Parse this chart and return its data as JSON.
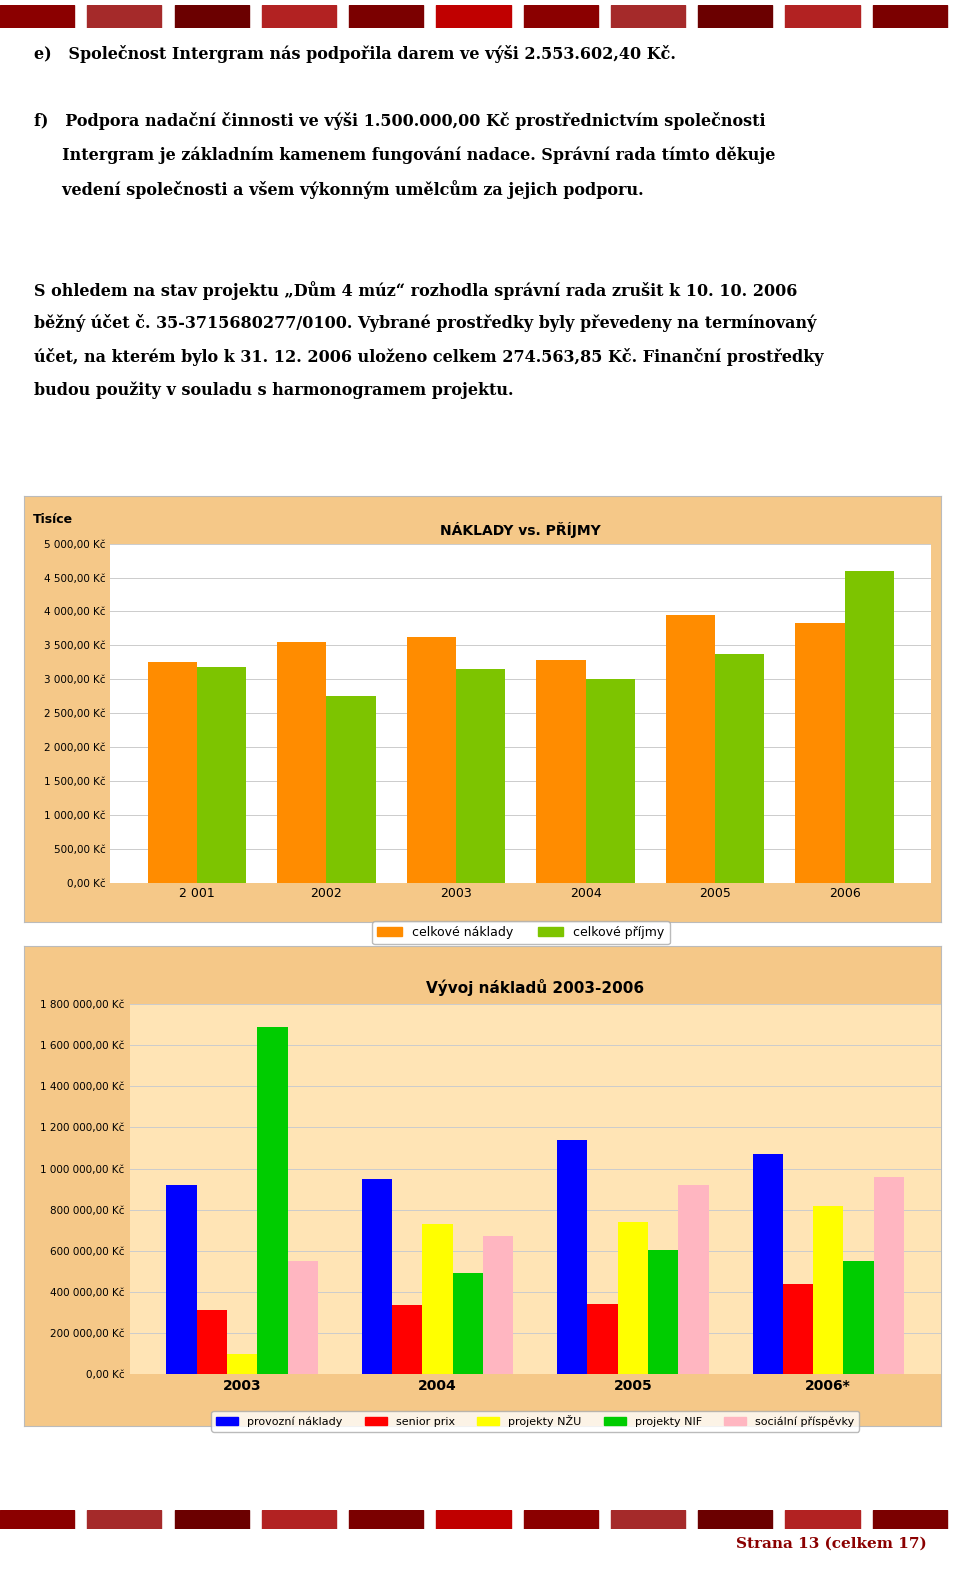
{
  "page_bg": "#ffffff",
  "stripe_colors": [
    "#8B0000",
    "#A52A2A",
    "#6B0000",
    "#B22222",
    "#7B0000",
    "#C00000",
    "#8B0000",
    "#A52A2A",
    "#6B0000",
    "#B22222",
    "#7B0000"
  ],
  "chart1": {
    "title": "NÁKLADY vs. PŘÍJMY",
    "ylabel": "Tisíce",
    "years": [
      "2 001",
      "2002",
      "2003",
      "2004",
      "2005",
      "2006"
    ],
    "naklady": [
      3250,
      3550,
      3620,
      3280,
      3950,
      3830
    ],
    "prijmy": [
      3180,
      2750,
      3150,
      3000,
      3380,
      4600
    ],
    "naklady_color": "#FF8C00",
    "prijmy_color": "#7DC400",
    "bg_color": "#F5C888",
    "plot_bg": "#ffffff",
    "legend_naklady": "celkové náklady",
    "legend_prijmy": "celkové příjmy",
    "ylim": [
      0,
      5000
    ],
    "yticks": [
      0,
      500,
      1000,
      1500,
      2000,
      2500,
      3000,
      3500,
      4000,
      4500,
      5000
    ]
  },
  "chart2": {
    "title": "Vývoj nákladů 2003-2006",
    "years": [
      "2003",
      "2004",
      "2005",
      "2006*"
    ],
    "provozni_naklady": [
      920000,
      950000,
      1140000,
      1070000
    ],
    "senior_prix": [
      310000,
      335000,
      340000,
      440000
    ],
    "projekty_nzu": [
      100000,
      730000,
      740000,
      820000
    ],
    "projekty_nif": [
      1690000,
      490000,
      605000,
      550000
    ],
    "socialni_prispevky": [
      550000,
      670000,
      920000,
      960000
    ],
    "colors": [
      "#0000FF",
      "#FF0000",
      "#FFFF00",
      "#00CC00",
      "#FFB6C1"
    ],
    "bg_color": "#F5C888",
    "plot_bg": "#FFE4B5",
    "ylim": [
      0,
      1800000
    ],
    "yticks": [
      0,
      200000,
      400000,
      600000,
      800000,
      1000000,
      1200000,
      1400000,
      1600000,
      1800000
    ],
    "legend_labels": [
      "provozní náklady",
      "senior prix",
      "projekty NŽU",
      "projekty NIF",
      "sociální příspěvky"
    ]
  },
  "footer_text": "Strana 13 (celkem 17)",
  "footer_color": "#8B0000",
  "text_block": [
    "e)   Společnost Intergram nás podpořila darem ve výši 2.553.602,40 Kč.",
    "",
    "f)   Podpora nadační činnosti ve výši 1.500.000,00 Kč prostřednictvím společnosti",
    "     Intergram je základním kamenem fungování nadace. Správní rada tímto děkuje",
    "     vedení společnosti a všem výkonným umělcům za jejich podporu.",
    "",
    "",
    "S ohledem na stav projektu „Dům 4 múz“ rozhodla správní rada zrušit k 10. 10. 2006",
    "běžný účet č. 35-3715680277/0100. Vybrané prostředky byly převedeny na termínovaný",
    "účet, na kterém bylo k 31. 12. 2006 uloženo celkem 274.563,85 Kč. Finanční prostředky",
    "budou použity v souladu s harmonogramem projektu."
  ]
}
